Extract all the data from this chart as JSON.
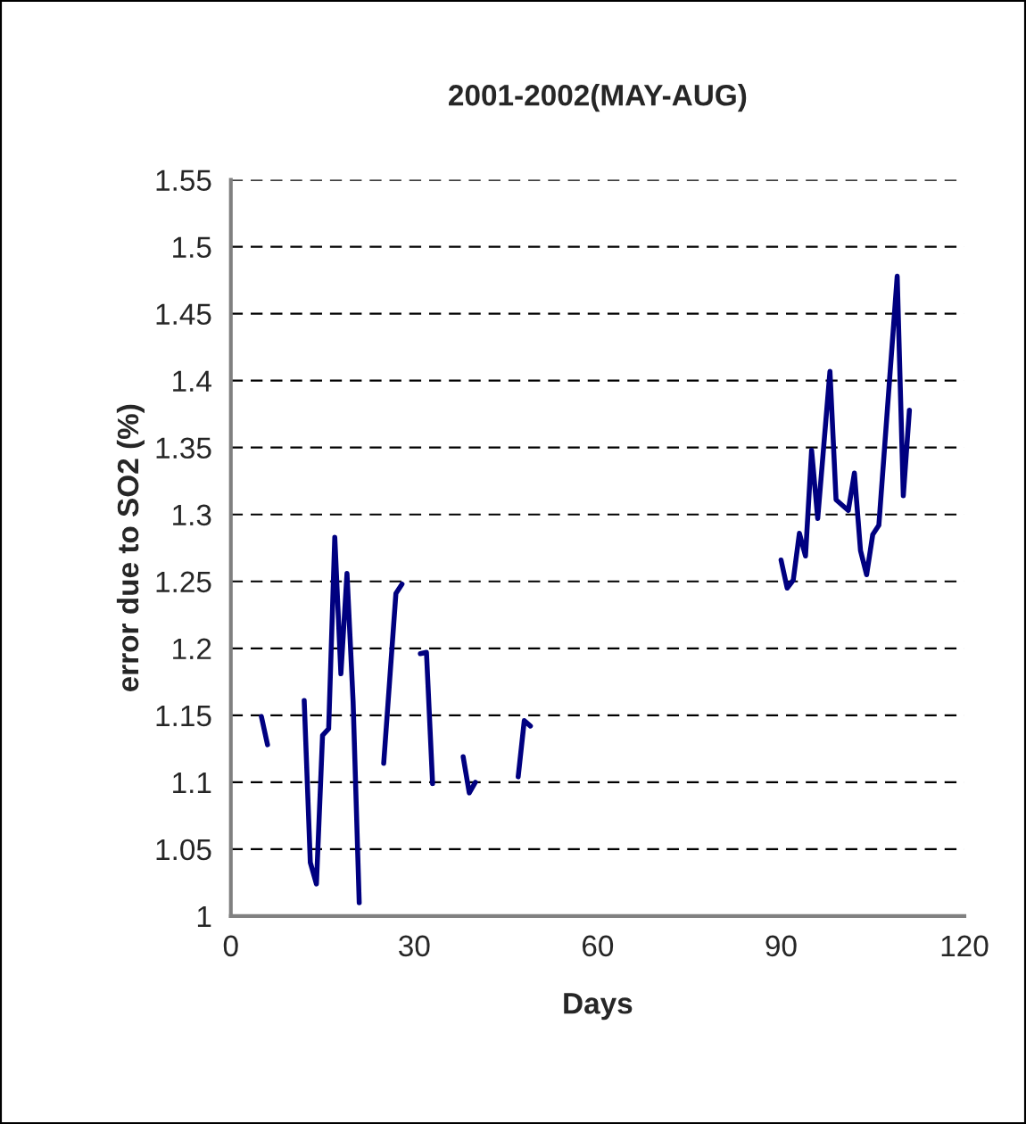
{
  "chart_data": {
    "type": "line",
    "title": "2001-2002(MAY-AUG)",
    "xlabel": "Days",
    "ylabel": "error due to SO2 (%)",
    "x": [
      5,
      6,
      8,
      12,
      13,
      14,
      15,
      16,
      17,
      18,
      19,
      20,
      21,
      23,
      25,
      27,
      28,
      30,
      31,
      32,
      33,
      36,
      38,
      39,
      40,
      44,
      47,
      48,
      49,
      70,
      90,
      91,
      92,
      93,
      94,
      95,
      96,
      98,
      99,
      101,
      102,
      103,
      104,
      105,
      106,
      109,
      110,
      111
    ],
    "series": [
      {
        "color": "#000080",
        "values": [
          1.149,
          1.128,
          null,
          1.161,
          1.04,
          1.024,
          1.135,
          1.14,
          1.283,
          1.181,
          1.256,
          1.16,
          1.01,
          null,
          1.114,
          1.241,
          1.248,
          null,
          1.196,
          1.197,
          1.099,
          null,
          1.119,
          1.092,
          1.1,
          null,
          1.104,
          1.146,
          1.142,
          null,
          1.266,
          1.245,
          1.251,
          1.286,
          1.269,
          1.348,
          1.297,
          1.407,
          1.311,
          1.303,
          1.331,
          1.273,
          1.255,
          1.285,
          1.292,
          1.478,
          1.314,
          1.378
        ]
      }
    ],
    "xlim": [
      0,
      120
    ],
    "xticks": [
      0,
      30,
      60,
      90,
      120
    ],
    "ylim": [
      1,
      1.55
    ],
    "yticks": [
      1,
      1.05,
      1.1,
      1.15,
      1.2,
      1.25,
      1.3,
      1.35,
      1.4,
      1.45,
      1.5,
      1.55
    ],
    "grid": "y",
    "line_style": "solid"
  }
}
